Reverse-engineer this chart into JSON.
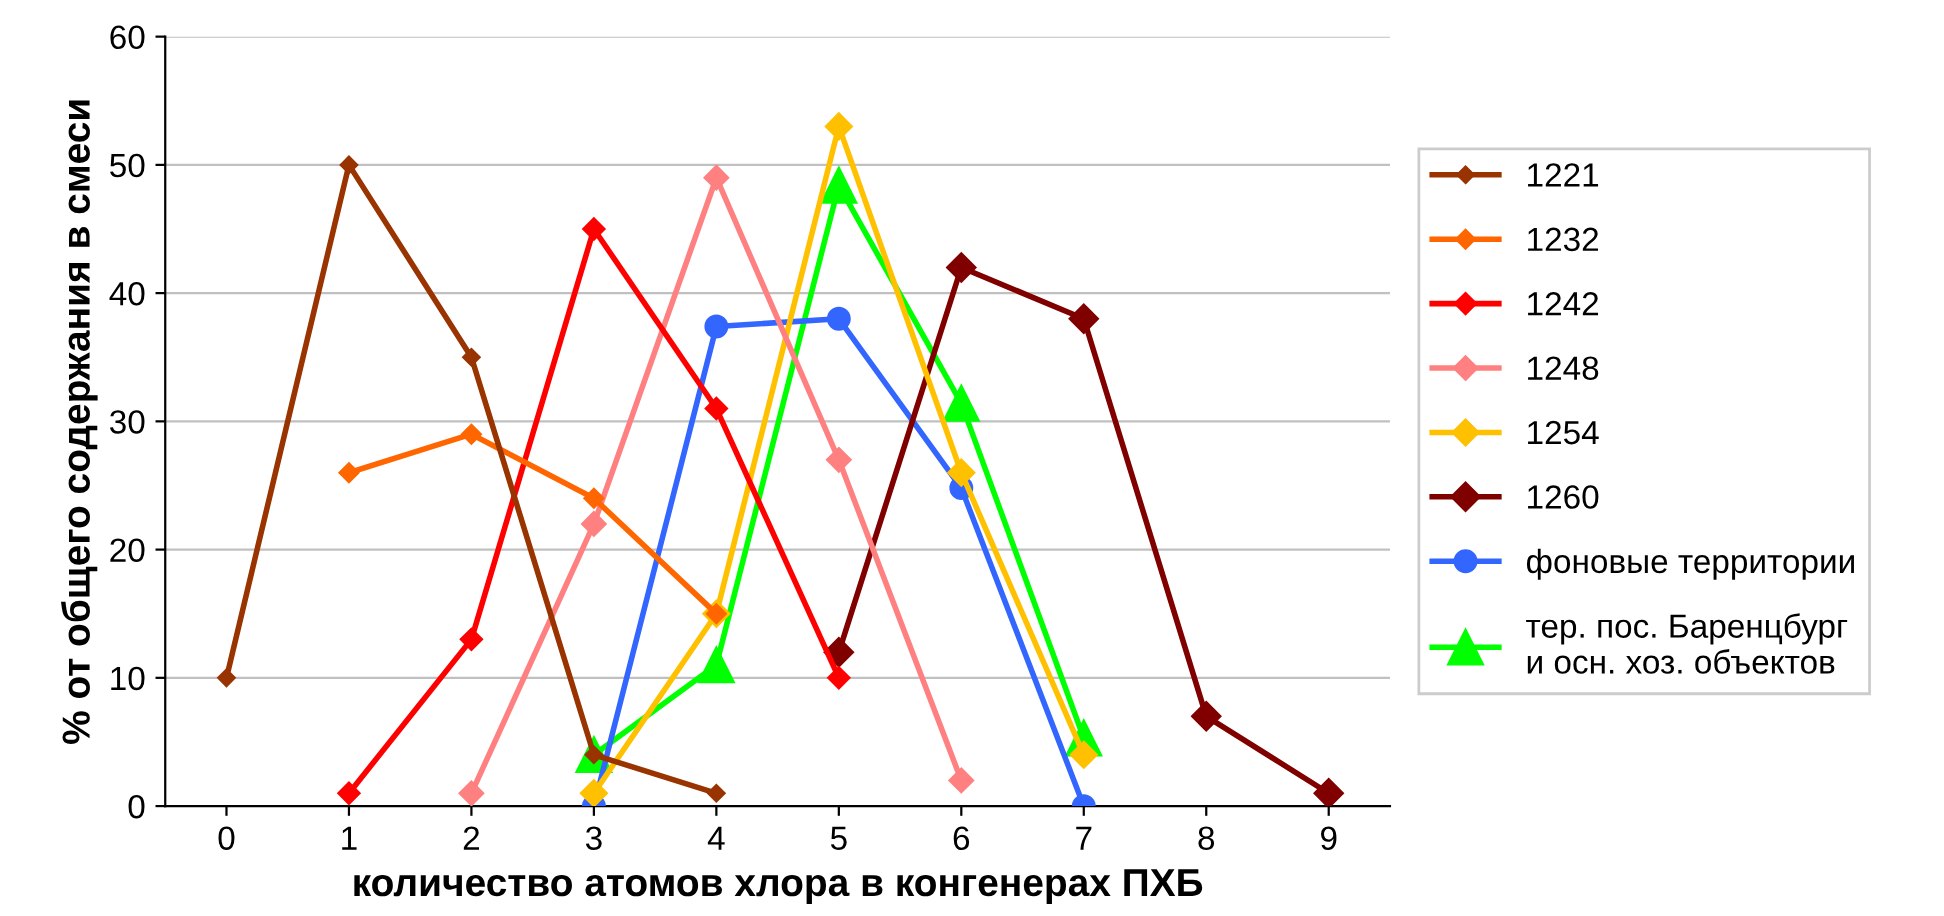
{
  "chart_data": {
    "type": "line",
    "xlabel": "количество атомов хлора в конгенерах ПХБ",
    "ylabel": "% от общего содержания в смеси",
    "categories": [
      "0",
      "1",
      "2",
      "3",
      "4",
      "5",
      "6",
      "7",
      "8",
      "9"
    ],
    "ylim": [
      0,
      60
    ],
    "yticks": [
      0,
      10,
      20,
      30,
      40,
      50,
      60
    ],
    "grid": "y",
    "legend": "right",
    "series": [
      {
        "name": "1221",
        "color": "#993300",
        "marker": "diamond",
        "values": [
          10,
          50,
          35,
          4,
          1,
          null,
          null,
          null,
          null,
          null
        ]
      },
      {
        "name": "1232",
        "color": "#ff6600",
        "marker": "diamond",
        "values": [
          null,
          26,
          29,
          24,
          15,
          null,
          null,
          null,
          null,
          null
        ]
      },
      {
        "name": "1242",
        "color": "#ff0000",
        "marker": "diamond",
        "values": [
          null,
          1,
          13,
          45,
          31,
          10,
          null,
          null,
          null,
          null
        ]
      },
      {
        "name": "1248",
        "color": "#ff8080",
        "marker": "diamond",
        "values": [
          null,
          null,
          1,
          22,
          49,
          27,
          2,
          null,
          null,
          null
        ]
      },
      {
        "name": "1254",
        "color": "#ffc000",
        "marker": "diamond",
        "values": [
          null,
          null,
          null,
          1,
          15,
          53,
          26,
          4,
          null,
          null
        ]
      },
      {
        "name": "1260",
        "color": "#800000",
        "marker": "diamond",
        "values": [
          null,
          null,
          null,
          null,
          null,
          12,
          42,
          38,
          7,
          1
        ]
      },
      {
        "name": "фоновые территории",
        "color": "#3366ff",
        "marker": "circle",
        "values": [
          null,
          null,
          null,
          0,
          37.4,
          38,
          24.8,
          0,
          null,
          null
        ]
      },
      {
        "name": "тер. пос. Баренцбург\nи осн. хоз. объектов",
        "color": "#00ff00",
        "marker": "triangle",
        "values": [
          null,
          null,
          null,
          4,
          11,
          48.4,
          31.4,
          5.3,
          null,
          null
        ]
      }
    ]
  }
}
